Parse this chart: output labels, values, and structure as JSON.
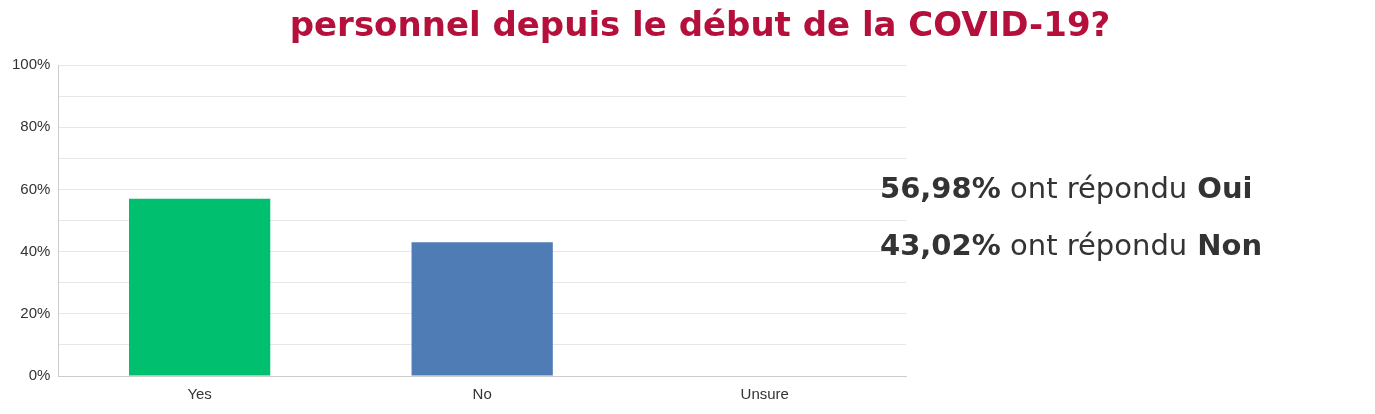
{
  "chart_data": {
    "type": "bar",
    "title": "personnel depuis le début de la COVID-19?",
    "categories": [
      "Yes",
      "No",
      "Unsure"
    ],
    "values": [
      56.98,
      43.02,
      0
    ],
    "colors": [
      "#00bf6f",
      "#507cb6",
      "#507cb6"
    ],
    "ylim": [
      0,
      100
    ],
    "yticks": [
      {
        "value": 0,
        "label": "0%"
      },
      {
        "value": 10,
        "label": null
      },
      {
        "value": 20,
        "label": "20%"
      },
      {
        "value": 30,
        "label": null
      },
      {
        "value": 40,
        "label": "40%"
      },
      {
        "value": 50,
        "label": null
      },
      {
        "value": 60,
        "label": "60%"
      },
      {
        "value": 70,
        "label": null
      },
      {
        "value": 80,
        "label": "80%"
      },
      {
        "value": 90,
        "label": null
      },
      {
        "value": 100,
        "label": "100%"
      }
    ],
    "grid": "y",
    "annotations": [
      "56,98% ont répondu Oui",
      "43,02% ont répondu Non"
    ]
  }
}
